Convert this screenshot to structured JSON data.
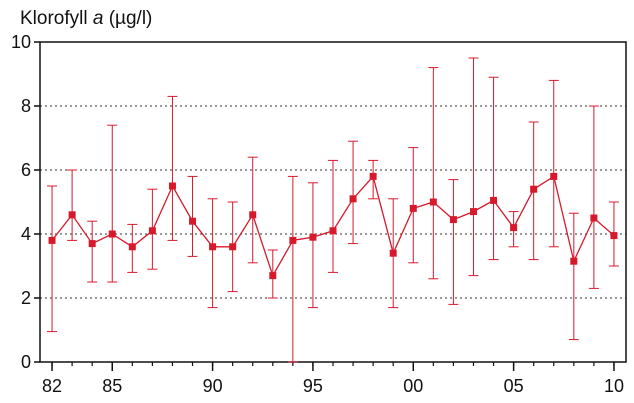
{
  "chart_data": {
    "type": "line",
    "title_prefix": "Klorofyll ",
    "title_symbol": "a",
    "title_suffix": " (µg/l)",
    "xlim": [
      1981.4,
      2010.6
    ],
    "ylim": [
      0,
      10
    ],
    "x_ticks": [
      1982,
      1985,
      1990,
      1995,
      2000,
      2005,
      2010
    ],
    "x_tick_labels": [
      "82",
      "85",
      "90",
      "95",
      "00",
      "05",
      "10"
    ],
    "y_ticks": [
      0,
      2,
      4,
      6,
      8,
      10
    ],
    "y_tick_labels": [
      "0",
      "2",
      "4",
      "6",
      "8",
      "10"
    ],
    "grid": "horizontal dotted at 2, 4, 6, 8",
    "color": "#d7192c",
    "series": [
      {
        "x": [
          1982,
          1983,
          1984,
          1985,
          1986,
          1987,
          1988,
          1989,
          1990,
          1991,
          1992,
          1993,
          1994,
          1995,
          1996,
          1997,
          1998,
          1999,
          2000,
          2001,
          2002,
          2003,
          2004,
          2005,
          2006,
          2007,
          2008,
          2009,
          2010
        ],
        "y": [
          3.8,
          4.6,
          3.7,
          4.0,
          3.6,
          4.1,
          5.5,
          4.4,
          3.6,
          3.6,
          4.6,
          2.7,
          3.8,
          3.9,
          4.1,
          5.1,
          5.8,
          3.4,
          4.8,
          5.0,
          4.45,
          4.7,
          5.05,
          4.2,
          5.4,
          5.8,
          3.15,
          4.5,
          3.95
        ],
        "y_low": [
          0.95,
          3.8,
          2.5,
          2.5,
          2.8,
          2.9,
          3.8,
          3.3,
          1.7,
          2.2,
          3.1,
          2.0,
          0.0,
          1.7,
          2.8,
          3.7,
          5.1,
          1.7,
          3.1,
          2.6,
          1.8,
          2.7,
          3.2,
          3.6,
          3.2,
          3.6,
          0.7,
          2.3,
          3.0
        ],
        "y_high": [
          5.5,
          6.0,
          4.4,
          7.4,
          4.3,
          5.4,
          8.3,
          5.8,
          5.1,
          5.0,
          6.4,
          3.5,
          5.8,
          5.6,
          6.3,
          6.9,
          6.3,
          5.1,
          6.7,
          9.2,
          5.7,
          9.5,
          8.9,
          4.7,
          7.5,
          8.8,
          4.65,
          8.0,
          5.0
        ]
      }
    ]
  }
}
